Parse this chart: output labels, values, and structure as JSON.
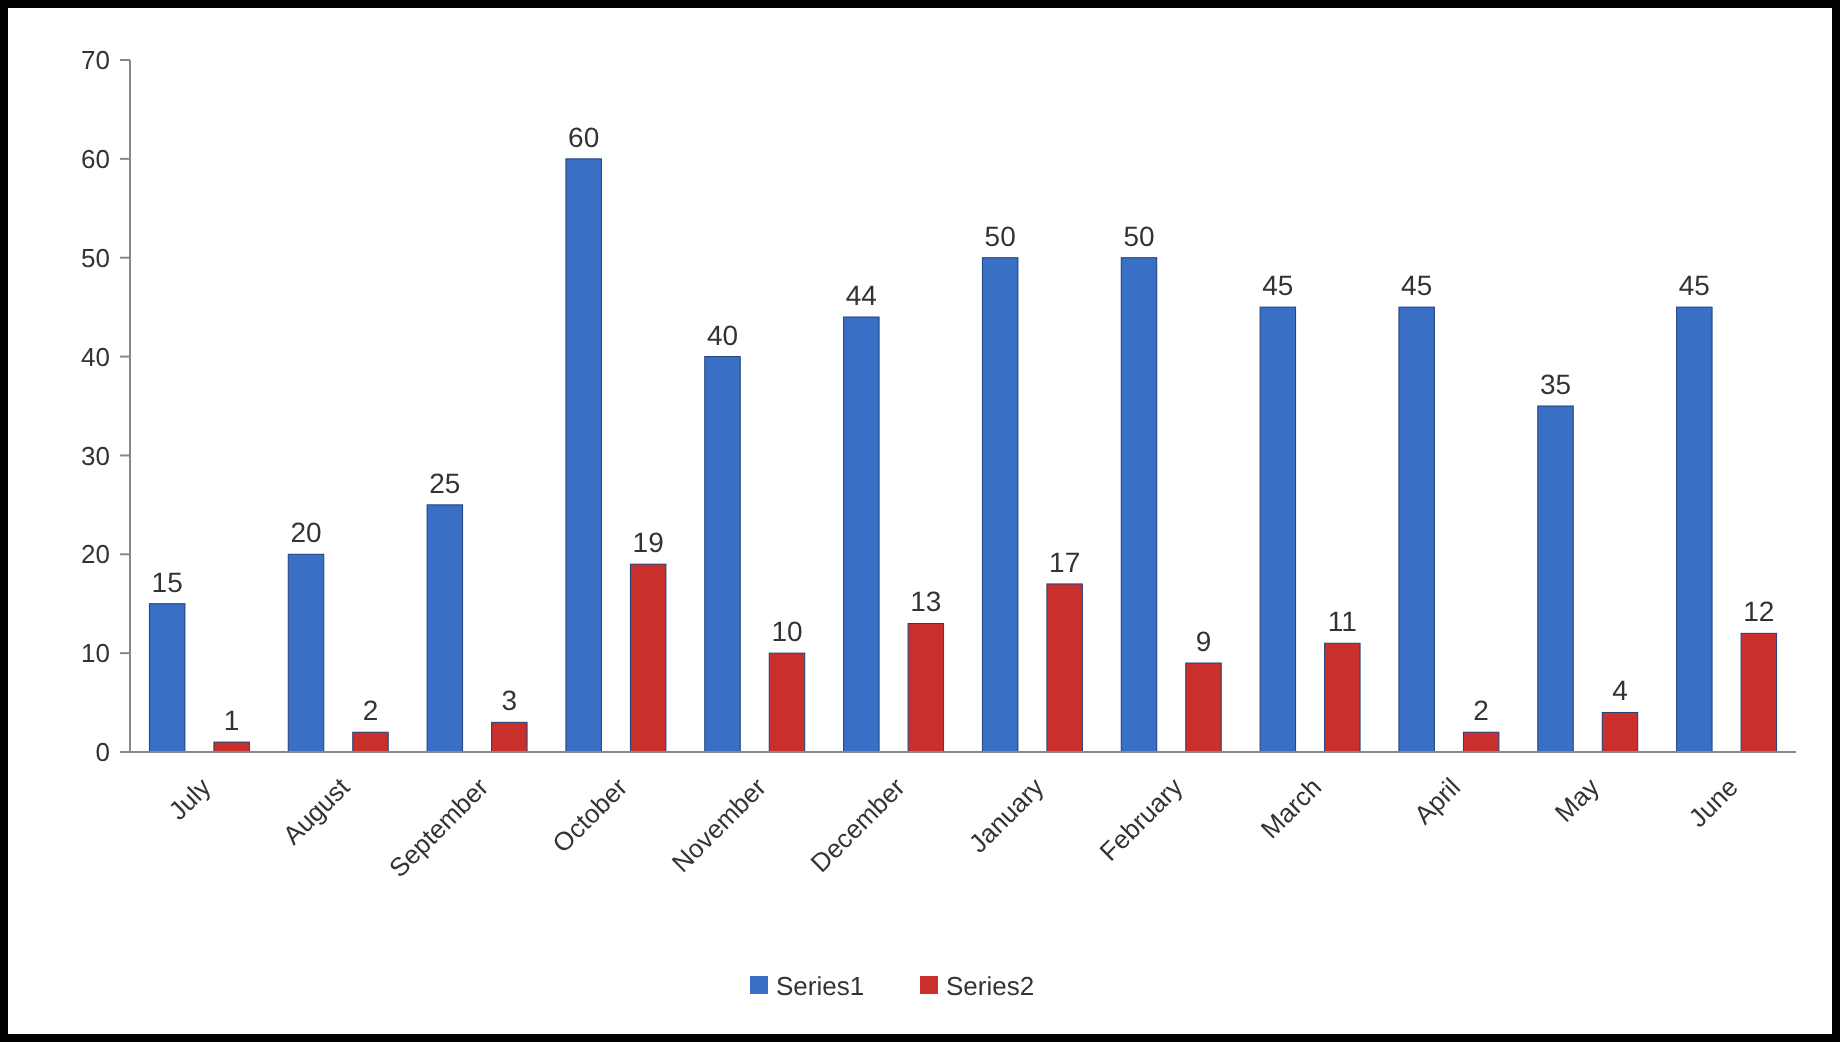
{
  "chart_data": {
    "type": "bar",
    "categories": [
      "July",
      "August",
      "September",
      "October",
      "November",
      "December",
      "January",
      "February",
      "March",
      "April",
      "May",
      "June"
    ],
    "series": [
      {
        "name": "Series1",
        "color": "#3a6fc6",
        "values": [
          15,
          20,
          25,
          60,
          40,
          44,
          50,
          50,
          45,
          45,
          35,
          45
        ]
      },
      {
        "name": "Series2",
        "color": "#c9302c",
        "values": [
          1,
          2,
          3,
          19,
          10,
          13,
          17,
          9,
          11,
          2,
          4,
          12
        ]
      }
    ],
    "ylim": [
      0,
      70
    ],
    "yticks": [
      0,
      10,
      20,
      30,
      40,
      50,
      60,
      70
    ],
    "grid": false,
    "legend": "bottom",
    "data_labels": true
  }
}
